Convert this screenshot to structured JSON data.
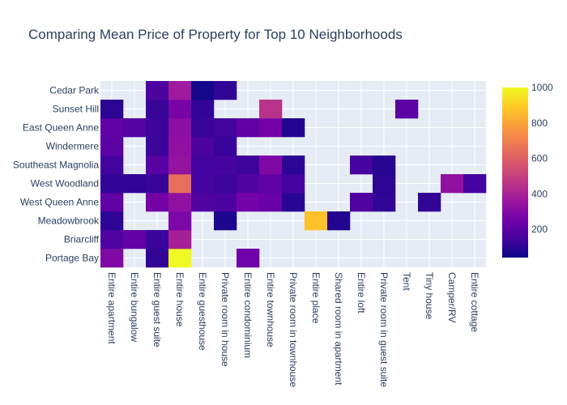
{
  "chart_data": {
    "type": "heatmap",
    "title": "Comparing Mean Price of Property for Top 10 Neighborhoods",
    "xlabel": "",
    "ylabel": "",
    "x_categories": [
      "Entire apartment",
      "Entire bungalow",
      "Entire guest suite",
      "Entire house",
      "Entire guesthouse",
      "Private room in house",
      "Entire condominium",
      "Entire townhouse",
      "Private room in townhouse",
      "Entire place",
      "Shared room in apartment",
      "Entire loft",
      "Private room in guest suite",
      "Tent",
      "Tiny house",
      "Camper/RV",
      "Entire cottage"
    ],
    "y_categories": [
      "Portage Bay",
      "Briarcliff",
      "Meadowbrook",
      "West Queen Anne",
      "West Woodland",
      "Southeast Magnolia",
      "Windermere",
      "East Queen Anne",
      "Sunset Hill",
      "Cedar Park"
    ],
    "z": [
      [
        290,
        null,
        110,
        1000,
        null,
        null,
        250,
        null,
        null,
        null,
        null,
        null,
        null,
        null,
        null,
        null,
        null
      ],
      [
        170,
        220,
        120,
        390,
        null,
        null,
        null,
        null,
        null,
        null,
        null,
        null,
        null,
        null,
        null,
        null,
        null
      ],
      [
        100,
        null,
        null,
        280,
        null,
        70,
        null,
        null,
        null,
        870,
        80,
        null,
        null,
        null,
        null,
        null,
        null
      ],
      [
        210,
        null,
        260,
        330,
        170,
        160,
        260,
        230,
        90,
        null,
        null,
        170,
        110,
        null,
        110,
        null,
        null
      ],
      [
        110,
        110,
        120,
        650,
        150,
        130,
        170,
        210,
        150,
        null,
        null,
        null,
        100,
        null,
        null,
        330,
        140
      ],
      [
        140,
        null,
        190,
        340,
        140,
        150,
        130,
        290,
        100,
        null,
        null,
        150,
        90,
        null,
        null,
        null,
        null
      ],
      [
        200,
        null,
        130,
        330,
        160,
        120,
        null,
        null,
        null,
        null,
        null,
        null,
        null,
        null,
        null,
        null,
        null
      ],
      [
        210,
        180,
        130,
        320,
        120,
        140,
        210,
        260,
        80,
        null,
        null,
        null,
        null,
        null,
        null,
        null,
        null
      ],
      [
        100,
        null,
        120,
        270,
        110,
        null,
        null,
        450,
        null,
        null,
        null,
        null,
        null,
        200,
        null,
        null,
        null
      ],
      [
        null,
        null,
        160,
        370,
        50,
        110,
        null,
        null,
        null,
        null,
        null,
        null,
        null,
        null,
        null,
        null,
        null
      ]
    ],
    "zmin": 40,
    "zmax": 1000,
    "colorscale": [
      "#0d0887",
      "#46039f",
      "#7201a8",
      "#9c179e",
      "#bd3786",
      "#d8576b",
      "#ed7953",
      "#fb9f3a",
      "#fdca26",
      "#f0f921"
    ],
    "colorbar_ticks": [
      200,
      400,
      600,
      800,
      1000
    ],
    "grid": true,
    "plot_background": "#e5ecf6"
  }
}
